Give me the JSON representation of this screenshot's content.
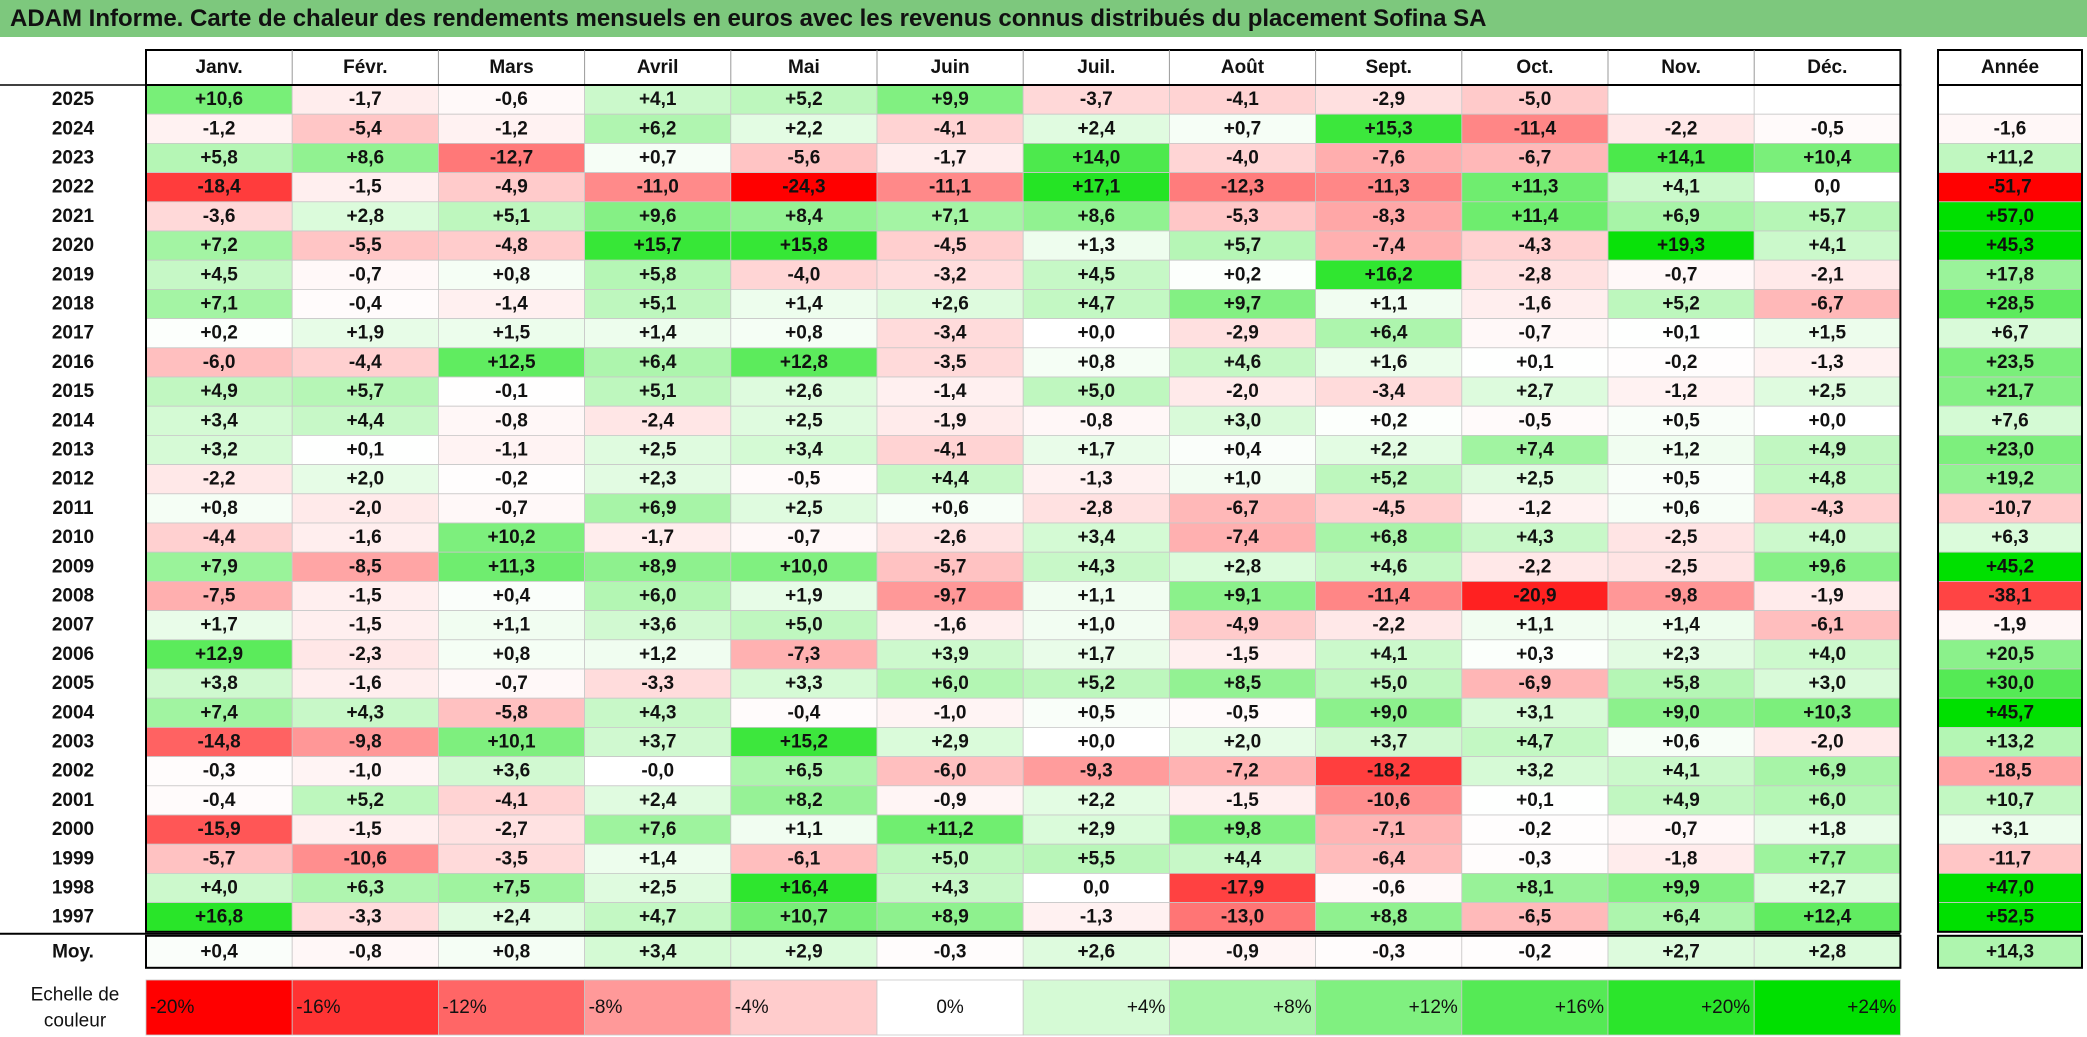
{
  "title": "ADAM Informe. Carte de chaleur des rendements mensuels en euros avec les revenus connus distribués du placement Sofina SA",
  "chart_data": {
    "type": "heatmap",
    "months": [
      "Janv.",
      "Févr.",
      "Mars",
      "Avril",
      "Mai",
      "Juin",
      "Juil.",
      "Août",
      "Sept.",
      "Oct.",
      "Nov.",
      "Déc."
    ],
    "year_header": "Année",
    "rows": [
      {
        "year": "2025",
        "values": [
          "+10,6",
          "-1,7",
          "-0,6",
          "+4,1",
          "+5,2",
          "+9,9",
          "-3,7",
          "-4,1",
          "-2,9",
          "-5,0",
          "",
          ""
        ],
        "annual": ""
      },
      {
        "year": "2024",
        "values": [
          "-1,2",
          "-5,4",
          "-1,2",
          "+6,2",
          "+2,2",
          "-4,1",
          "+2,4",
          "+0,7",
          "+15,3",
          "-11,4",
          "-2,2",
          "-0,5"
        ],
        "annual": "-1,6"
      },
      {
        "year": "2023",
        "values": [
          "+5,8",
          "+8,6",
          "-12,7",
          "+0,7",
          "-5,6",
          "-1,7",
          "+14,0",
          "-4,0",
          "-7,6",
          "-6,7",
          "+14,1",
          "+10,4"
        ],
        "annual": "+11,2"
      },
      {
        "year": "2022",
        "values": [
          "-18,4",
          "-1,5",
          "-4,9",
          "-11,0",
          "-24,3",
          "-11,1",
          "+17,1",
          "-12,3",
          "-11,3",
          "+11,3",
          "+4,1",
          "0,0"
        ],
        "annual": "-51,7"
      },
      {
        "year": "2021",
        "values": [
          "-3,6",
          "+2,8",
          "+5,1",
          "+9,6",
          "+8,4",
          "+7,1",
          "+8,6",
          "-5,3",
          "-8,3",
          "+11,4",
          "+6,9",
          "+5,7"
        ],
        "annual": "+57,0"
      },
      {
        "year": "2020",
        "values": [
          "+7,2",
          "-5,5",
          "-4,8",
          "+15,7",
          "+15,8",
          "-4,5",
          "+1,3",
          "+5,7",
          "-7,4",
          "-4,3",
          "+19,3",
          "+4,1"
        ],
        "annual": "+45,3"
      },
      {
        "year": "2019",
        "values": [
          "+4,5",
          "-0,7",
          "+0,8",
          "+5,8",
          "-4,0",
          "-3,2",
          "+4,5",
          "+0,2",
          "+16,2",
          "-2,8",
          "-0,7",
          "-2,1"
        ],
        "annual": "+17,8"
      },
      {
        "year": "2018",
        "values": [
          "+7,1",
          "-0,4",
          "-1,4",
          "+5,1",
          "+1,4",
          "+2,6",
          "+4,7",
          "+9,7",
          "+1,1",
          "-1,6",
          "+5,2",
          "-6,7"
        ],
        "annual": "+28,5"
      },
      {
        "year": "2017",
        "values": [
          "+0,2",
          "+1,9",
          "+1,5",
          "+1,4",
          "+0,8",
          "-3,4",
          "+0,0",
          "-2,9",
          "+6,4",
          "-0,7",
          "+0,1",
          "+1,5"
        ],
        "annual": "+6,7"
      },
      {
        "year": "2016",
        "values": [
          "-6,0",
          "-4,4",
          "+12,5",
          "+6,4",
          "+12,8",
          "-3,5",
          "+0,8",
          "+4,6",
          "+1,6",
          "+0,1",
          "-0,2",
          "-1,3"
        ],
        "annual": "+23,5"
      },
      {
        "year": "2015",
        "values": [
          "+4,9",
          "+5,7",
          "-0,1",
          "+5,1",
          "+2,6",
          "-1,4",
          "+5,0",
          "-2,0",
          "-3,4",
          "+2,7",
          "-1,2",
          "+2,5"
        ],
        "annual": "+21,7"
      },
      {
        "year": "2014",
        "values": [
          "+3,4",
          "+4,4",
          "-0,8",
          "-2,4",
          "+2,5",
          "-1,9",
          "-0,8",
          "+3,0",
          "+0,2",
          "-0,5",
          "+0,5",
          "+0,0"
        ],
        "annual": "+7,6"
      },
      {
        "year": "2013",
        "values": [
          "+3,2",
          "+0,1",
          "-1,1",
          "+2,5",
          "+3,4",
          "-4,1",
          "+1,7",
          "+0,4",
          "+2,2",
          "+7,4",
          "+1,2",
          "+4,9"
        ],
        "annual": "+23,0"
      },
      {
        "year": "2012",
        "values": [
          "-2,2",
          "+2,0",
          "-0,2",
          "+2,3",
          "-0,5",
          "+4,4",
          "-1,3",
          "+1,0",
          "+5,2",
          "+2,5",
          "+0,5",
          "+4,8"
        ],
        "annual": "+19,2"
      },
      {
        "year": "2011",
        "values": [
          "+0,8",
          "-2,0",
          "-0,7",
          "+6,9",
          "+2,5",
          "+0,6",
          "-2,8",
          "-6,7",
          "-4,5",
          "-1,2",
          "+0,6",
          "-4,3"
        ],
        "annual": "-10,7"
      },
      {
        "year": "2010",
        "values": [
          "-4,4",
          "-1,6",
          "+10,2",
          "-1,7",
          "-0,7",
          "-2,6",
          "+3,4",
          "-7,4",
          "+6,8",
          "+4,3",
          "-2,5",
          "+4,0"
        ],
        "annual": "+6,3"
      },
      {
        "year": "2009",
        "values": [
          "+7,9",
          "-8,5",
          "+11,3",
          "+8,9",
          "+10,0",
          "-5,7",
          "+4,3",
          "+2,8",
          "+4,6",
          "-2,2",
          "-2,5",
          "+9,6"
        ],
        "annual": "+45,2"
      },
      {
        "year": "2008",
        "values": [
          "-7,5",
          "-1,5",
          "+0,4",
          "+6,0",
          "+1,9",
          "-9,7",
          "+1,1",
          "+9,1",
          "-11,4",
          "-20,9",
          "-9,8",
          "-1,9"
        ],
        "annual": "-38,1"
      },
      {
        "year": "2007",
        "values": [
          "+1,7",
          "-1,5",
          "+1,1",
          "+3,6",
          "+5,0",
          "-1,6",
          "+1,0",
          "-4,9",
          "-2,2",
          "+1,1",
          "+1,4",
          "-6,1"
        ],
        "annual": "-1,9"
      },
      {
        "year": "2006",
        "values": [
          "+12,9",
          "-2,3",
          "+0,8",
          "+1,2",
          "-7,3",
          "+3,9",
          "+1,7",
          "-1,5",
          "+4,1",
          "+0,3",
          "+2,3",
          "+4,0"
        ],
        "annual": "+20,5"
      },
      {
        "year": "2005",
        "values": [
          "+3,8",
          "-1,6",
          "-0,7",
          "-3,3",
          "+3,3",
          "+6,0",
          "+5,2",
          "+8,5",
          "+5,0",
          "-6,9",
          "+5,8",
          "+3,0"
        ],
        "annual": "+30,0"
      },
      {
        "year": "2004",
        "values": [
          "+7,4",
          "+4,3",
          "-5,8",
          "+4,3",
          "-0,4",
          "-1,0",
          "+0,5",
          "-0,5",
          "+9,0",
          "+3,1",
          "+9,0",
          "+10,3"
        ],
        "annual": "+45,7"
      },
      {
        "year": "2003",
        "values": [
          "-14,8",
          "-9,8",
          "+10,1",
          "+3,7",
          "+15,2",
          "+2,9",
          "+0,0",
          "+2,0",
          "+3,7",
          "+4,7",
          "+0,6",
          "-2,0"
        ],
        "annual": "+13,2"
      },
      {
        "year": "2002",
        "values": [
          "-0,3",
          "-1,0",
          "+3,6",
          "-0,0",
          "+6,5",
          "-6,0",
          "-9,3",
          "-7,2",
          "-18,2",
          "+3,2",
          "+4,1",
          "+6,9"
        ],
        "annual": "-18,5"
      },
      {
        "year": "2001",
        "values": [
          "-0,4",
          "+5,2",
          "-4,1",
          "+2,4",
          "+8,2",
          "-0,9",
          "+2,2",
          "-1,5",
          "-10,6",
          "+0,1",
          "+4,9",
          "+6,0"
        ],
        "annual": "+10,7"
      },
      {
        "year": "2000",
        "values": [
          "-15,9",
          "-1,5",
          "-2,7",
          "+7,6",
          "+1,1",
          "+11,2",
          "+2,9",
          "+9,8",
          "-7,1",
          "-0,2",
          "-0,7",
          "+1,8"
        ],
        "annual": "+3,1"
      },
      {
        "year": "1999",
        "values": [
          "-5,7",
          "-10,6",
          "-3,5",
          "+1,4",
          "-6,1",
          "+5,0",
          "+5,5",
          "+4,4",
          "-6,4",
          "-0,3",
          "-1,8",
          "+7,7"
        ],
        "annual": "-11,7"
      },
      {
        "year": "1998",
        "values": [
          "+4,0",
          "+6,3",
          "+7,5",
          "+2,5",
          "+16,4",
          "+4,3",
          "0,0",
          "-17,9",
          "-0,6",
          "+8,1",
          "+9,9",
          "+2,7"
        ],
        "annual": "+47,0"
      },
      {
        "year": "1997",
        "values": [
          "+16,8",
          "-3,3",
          "+2,4",
          "+4,7",
          "+10,7",
          "+8,9",
          "-1,3",
          "-13,0",
          "+8,8",
          "-6,5",
          "+6,4",
          "+12,4"
        ],
        "annual": "+52,5"
      }
    ],
    "average": {
      "label": "Moy.",
      "values": [
        "+0,4",
        "-0,8",
        "+0,8",
        "+3,4",
        "+2,9",
        "-0,3",
        "+2,6",
        "-0,9",
        "-0,3",
        "-0,2",
        "+2,7",
        "+2,8"
      ],
      "annual": "+14,3"
    },
    "color_scale": {
      "label": "Echelle de couleur",
      "stops": [
        {
          "label": "-20%",
          "value": -20
        },
        {
          "label": "-16%",
          "value": -16
        },
        {
          "label": "-12%",
          "value": -12
        },
        {
          "label": "-8%",
          "value": -8
        },
        {
          "label": "-4%",
          "value": -4
        },
        {
          "label": "0%",
          "value": 0
        },
        {
          "label": "+4%",
          "value": 4
        },
        {
          "label": "+8%",
          "value": 8
        },
        {
          "label": "+12%",
          "value": 12
        },
        {
          "label": "+16%",
          "value": 16
        },
        {
          "label": "+20%",
          "value": 20
        },
        {
          "label": "+24%",
          "value": 24
        }
      ]
    },
    "colors": {
      "negative_max": "#ff0000",
      "zero": "#ffffff",
      "positive_max": "#00e000",
      "title_bar": "#7dc87d"
    }
  }
}
